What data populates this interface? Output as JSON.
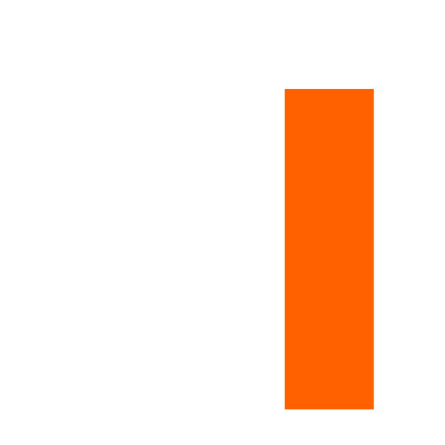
{
  "canvas": {
    "background_color": "#ffffff"
  },
  "shape": {
    "kind": "rectangle",
    "fill_color": "#ff6000"
  }
}
